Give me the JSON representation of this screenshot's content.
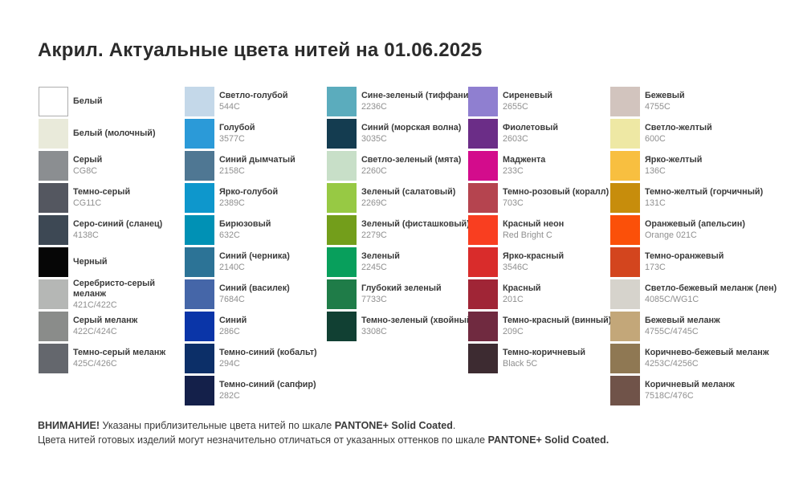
{
  "page_background": "#FFFFFF",
  "title": "Акрил. Актуальные цвета нитей на 01.06.2025",
  "text_colors": {
    "title": "#2B2B2B",
    "name": "#3A3A3A",
    "code": "#8F8F8F"
  },
  "columns": [
    {
      "items": [
        {
          "name": "Белый",
          "code": "",
          "hex": "#FFFFFF",
          "bordered": true
        },
        {
          "name": "Белый (молочный)",
          "code": "",
          "hex": "#E9EADA"
        },
        {
          "name": "Серый",
          "code": "CG8C",
          "hex": "#8B8E91"
        },
        {
          "name": "Темно-серый",
          "code": "CG11C",
          "hex": "#545760"
        },
        {
          "name": "Серо-синий (сланец)",
          "code": "4138C",
          "hex": "#3D4854"
        },
        {
          "name": "Черный",
          "code": "",
          "hex": "#060606"
        },
        {
          "name": "Серебристо-серый меланж",
          "code": "421C/422C",
          "hex": "#B5B7B5"
        },
        {
          "name": "Серый меланж",
          "code": "422C/424C",
          "hex": "#8A8C8A"
        },
        {
          "name": "Темно-серый меланж",
          "code": "425C/426C",
          "hex": "#64676D"
        }
      ]
    },
    {
      "items": [
        {
          "name": "Светло-голубой",
          "code": "544C",
          "hex": "#C4D8E9"
        },
        {
          "name": "Голубой",
          "code": "3577C",
          "hex": "#2B9AD8"
        },
        {
          "name": "Синий дымчатый",
          "code": "2158C",
          "hex": "#4F7793"
        },
        {
          "name": "Ярко-голубой",
          "code": "2389C",
          "hex": "#0E97CC"
        },
        {
          "name": "Бирюзовый",
          "code": "632C",
          "hex": "#0091B5"
        },
        {
          "name": "Синий (черника)",
          "code": "2140C",
          "hex": "#2C7396"
        },
        {
          "name": "Синий (василек)",
          "code": "7684C",
          "hex": "#4566A8"
        },
        {
          "name": "Синий",
          "code": "286C",
          "hex": "#0A35A8"
        },
        {
          "name": "Темно-синий (кобальт)",
          "code": "294C",
          "hex": "#0C2F68"
        },
        {
          "name": "Темно-синий (сапфир)",
          "code": "282C",
          "hex": "#14204A"
        }
      ]
    },
    {
      "items": [
        {
          "name": "Сине-зеленый (тиффани)",
          "code": "2236C",
          "hex": "#5BACBD"
        },
        {
          "name": "Синий (морская волна)",
          "code": "3035C",
          "hex": "#143C50"
        },
        {
          "name": "Светло-зеленый (мята)",
          "code": "2260C",
          "hex": "#C8DFC8"
        },
        {
          "name": "Зеленый (салатовый)",
          "code": "2269C",
          "hex": "#97C944"
        },
        {
          "name": "Зеленый (фисташковый)",
          "code": "2279C",
          "hex": "#739E1B"
        },
        {
          "name": "Зеленый",
          "code": "2245C",
          "hex": "#089F5C"
        },
        {
          "name": "Глубокий зеленый",
          "code": "7733C",
          "hex": "#1F7C48"
        },
        {
          "name": "Темно-зеленый (хвойный)",
          "code": "3308C",
          "hex": "#114033"
        }
      ]
    },
    {
      "items": [
        {
          "name": "Сиреневый",
          "code": "2655C",
          "hex": "#8F7FD0"
        },
        {
          "name": "Фиолетовый",
          "code": "2603C",
          "hex": "#6B2D87"
        },
        {
          "name": "Маджента",
          "code": "233C",
          "hex": "#D30C8C"
        },
        {
          "name": "Темно-розовый (коралл)",
          "code": "703C",
          "hex": "#B5444F"
        },
        {
          "name": "Красный неон",
          "code": "Red Bright C",
          "hex": "#F93E20"
        },
        {
          "name": "Ярко-красный",
          "code": "3546C",
          "hex": "#D92C2B"
        },
        {
          "name": "Красный",
          "code": "201C",
          "hex": "#A02536"
        },
        {
          "name": "Темно-красный (винный)",
          "code": "209C",
          "hex": "#702A40"
        },
        {
          "name": "Темно-коричневый",
          "code": "Black 5C",
          "hex": "#3D2B31"
        }
      ]
    },
    {
      "items": [
        {
          "name": "Бежевый",
          "code": "4755C",
          "hex": "#D2C4BE"
        },
        {
          "name": "Светло-желтый",
          "code": "600C",
          "hex": "#EEE8A4"
        },
        {
          "name": "Ярко-желтый",
          "code": "136C",
          "hex": "#F8BF40"
        },
        {
          "name": "Темно-желтый (горчичный)",
          "code": "131C",
          "hex": "#C78D0C"
        },
        {
          "name": "Оранжевый (апельсин)",
          "code": "Orange 021C",
          "hex": "#FB5009"
        },
        {
          "name": "Темно-оранжевый",
          "code": "173C",
          "hex": "#D3451E"
        },
        {
          "name": "Светло-бежевый меланж (лен)",
          "code": "4085C/WG1C",
          "hex": "#D6D3CC"
        },
        {
          "name": "Бежевый меланж",
          "code": "4755C/4745C",
          "hex": "#C3A779"
        },
        {
          "name": "Коричнево-бежевый меланж",
          "code": "4253C/4256C",
          "hex": "#8F7853"
        },
        {
          "name": "Коричневый меланж",
          "code": "7518C/476C",
          "hex": "#705349"
        }
      ]
    }
  ],
  "footer": {
    "line1": [
      {
        "text": "ВНИМАНИЕ!",
        "bold": true
      },
      {
        "text": " Указаны приблизительные цвета нитей по шкале ",
        "bold": false
      },
      {
        "text": "PANTONE+ Solid Coated",
        "bold": true
      },
      {
        "text": ".",
        "bold": false
      }
    ],
    "line2": [
      {
        "text": "Цвета нитей готовых изделий могут незначительно отличаться от указанных оттенков по шкале ",
        "bold": false
      },
      {
        "text": "PANTONE+ Solid Coated.",
        "bold": true
      }
    ]
  }
}
